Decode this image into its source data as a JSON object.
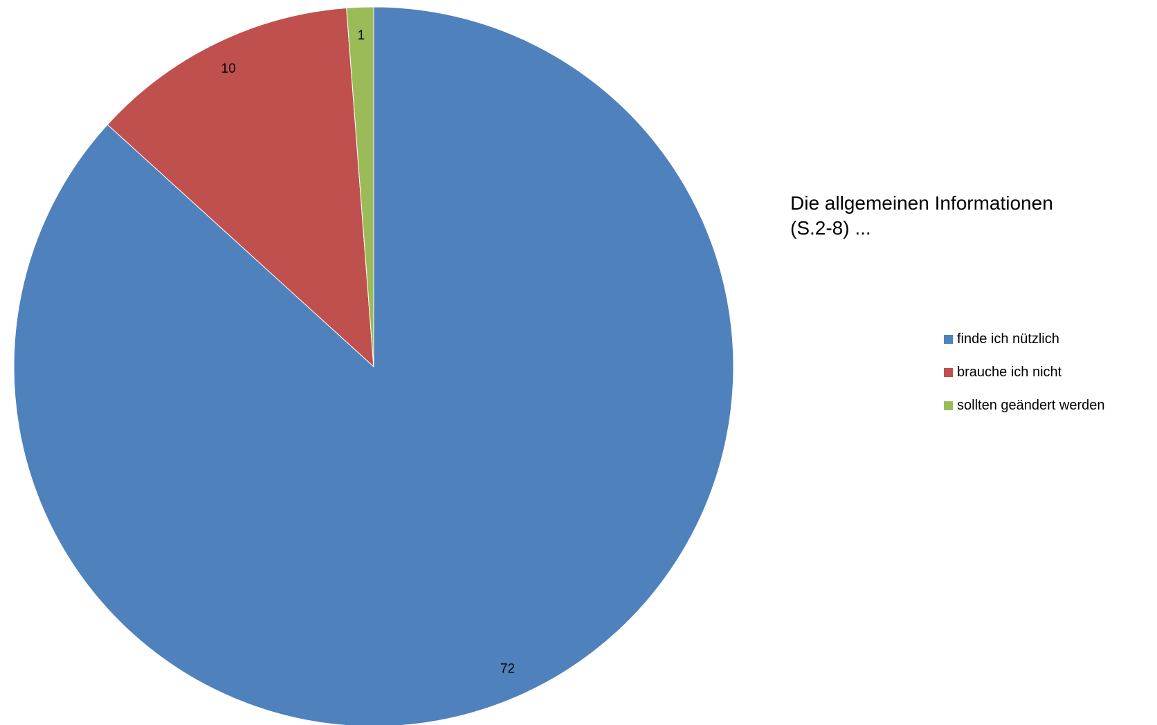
{
  "chart_data": {
    "type": "pie",
    "title": "Die allgemeinen Informationen\n(S.2-8) ...",
    "categories": [
      "finde ich nützlich",
      "brauche ich nicht",
      "sollten geändert werden"
    ],
    "values": [
      72,
      10,
      1
    ],
    "colors": [
      "#4F81BD",
      "#C0504D",
      "#9BBB59"
    ],
    "data_labels": [
      "72",
      "10",
      "1"
    ],
    "legend_position": "right"
  }
}
